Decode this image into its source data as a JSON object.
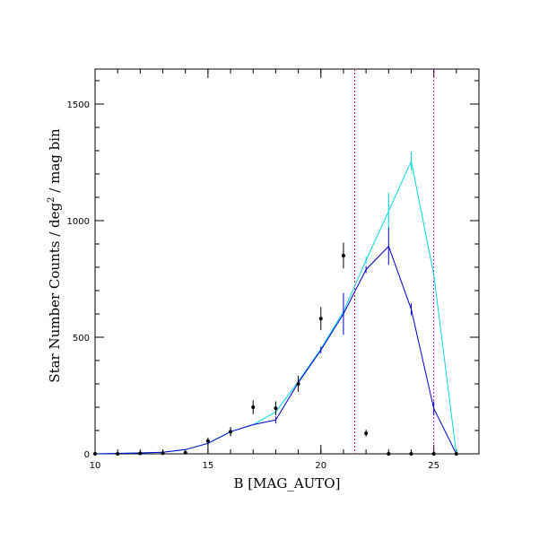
{
  "chart_data": {
    "type": "line",
    "xlabel": "B [MAG_AUTO]",
    "ylabel_main": "Star Number Counts / deg",
    "ylabel_sup": "2",
    "ylabel_tail": " / mag bin",
    "xlim": [
      10,
      27
    ],
    "ylim": [
      0,
      1650
    ],
    "x_ticks": [
      10,
      15,
      20,
      25
    ],
    "y_ticks": [
      0,
      500,
      1000,
      1500
    ],
    "x_minor_step": 1,
    "y_minor_step": 100,
    "grid": false,
    "vlines": [
      {
        "x": 21.5,
        "color": "#cc0033"
      },
      {
        "x": 25.0,
        "color": "#cc00cc"
      }
    ],
    "series": [
      {
        "kind": "line",
        "color": "#00d8e8",
        "x": [
          10,
          11,
          12,
          13,
          14,
          15,
          16,
          17,
          18,
          19,
          20,
          21,
          22,
          23,
          24,
          25,
          26
        ],
        "y": [
          0,
          2,
          4,
          7,
          18,
          45,
          95,
          125,
          180,
          310,
          450,
          610,
          830,
          1040,
          1255,
          770,
          0
        ],
        "err": [
          0,
          0,
          0,
          0,
          0,
          0,
          0,
          0,
          0,
          0,
          0,
          0,
          15,
          80,
          40,
          0,
          0
        ]
      },
      {
        "kind": "line",
        "color": "#0000cc",
        "x": [
          10,
          11,
          12,
          13,
          14,
          15,
          16,
          17,
          18,
          19,
          20,
          21,
          22,
          23,
          24,
          25,
          26
        ],
        "y": [
          0,
          2,
          4,
          7,
          18,
          45,
          95,
          125,
          145,
          305,
          445,
          600,
          790,
          890,
          620,
          195,
          0
        ],
        "err": [
          0,
          0,
          0,
          0,
          0,
          10,
          15,
          0,
          15,
          20,
          15,
          90,
          15,
          80,
          25,
          30,
          0
        ]
      },
      {
        "kind": "points",
        "color": "#000000",
        "x": [
          10,
          11,
          12,
          13,
          14,
          15,
          16,
          17,
          18,
          19,
          20,
          21,
          22,
          23,
          24,
          25,
          26
        ],
        "y": [
          0,
          0,
          2,
          3,
          5,
          55,
          95,
          200,
          195,
          300,
          580,
          850,
          88,
          0,
          0,
          0,
          0
        ],
        "err": [
          0,
          0,
          2,
          2,
          3,
          15,
          20,
          30,
          30,
          35,
          50,
          55,
          15,
          0,
          0,
          0,
          0
        ]
      }
    ]
  }
}
